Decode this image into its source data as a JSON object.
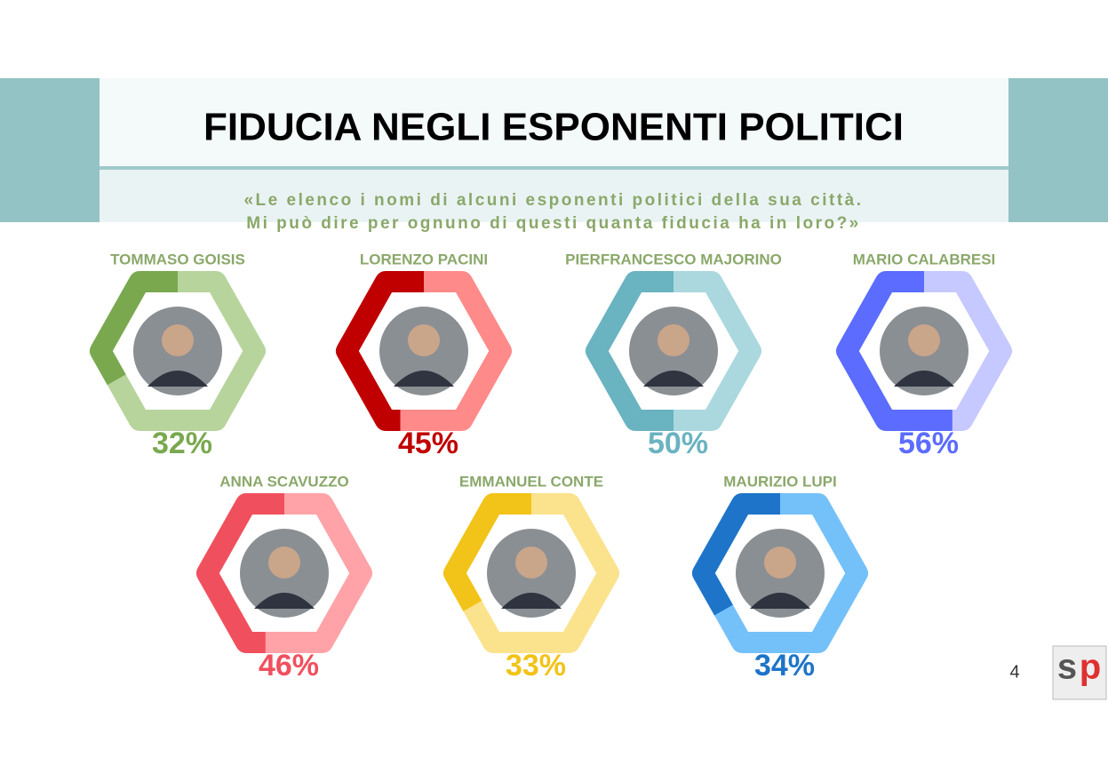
{
  "header": {
    "title": "FIDUCIA NEGLI ESPONENTI POLITICI",
    "subtitle": [
      "«Le elenco i nomi di alcuni esponenti politici della sua città.",
      "Mi può dire per ognuno di questi quanta fiducia ha in loro?»"
    ]
  },
  "people": [
    {
      "name": "TOMMASO GOISIS",
      "value": 32,
      "label": "32%",
      "color": "#7aa84f",
      "light": "#b7d49c"
    },
    {
      "name": "LORENZO PACINI",
      "value": 45,
      "label": "45%",
      "color": "#c00000",
      "light": "#ff8a8a"
    },
    {
      "name": "PIERFRANCESCO MAJORINO",
      "value": 50,
      "label": "50%",
      "color": "#6ab3c0",
      "light": "#aad8de"
    },
    {
      "name": "MARIO CALABRESI",
      "value": 56,
      "label": "56%",
      "color": "#5b6cff",
      "light": "#c6c9ff"
    },
    {
      "name": "ANNA SCAVUZZO",
      "value": 46,
      "label": "46%",
      "color": "#f0505e",
      "light": "#ffa3a8"
    },
    {
      "name": "EMMANUEL CONTE",
      "value": 33,
      "label": "33%",
      "color": "#f2c318",
      "light": "#fbe28c"
    },
    {
      "name": "MAURIZIO LUPI",
      "value": 34,
      "label": "34%",
      "color": "#1d74c9",
      "light": "#74c1fa"
    }
  ],
  "page_number": "4",
  "logo": {
    "s": "s",
    "p": "p"
  }
}
